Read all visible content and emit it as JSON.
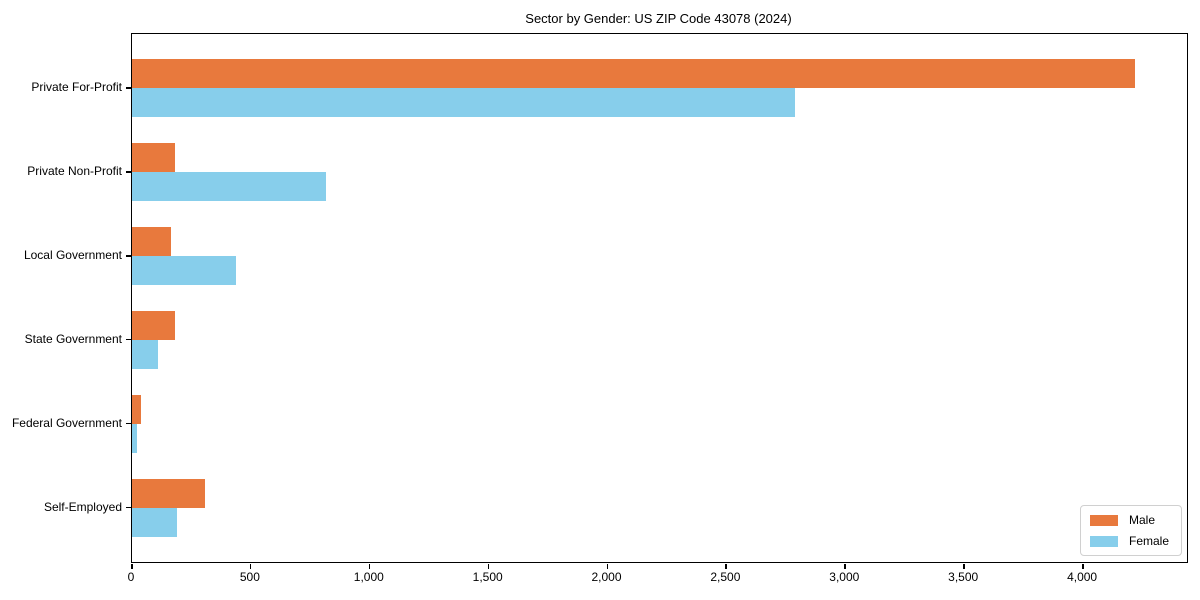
{
  "chart_data": {
    "type": "bar",
    "orientation": "horizontal",
    "title": "Sector by Gender: US ZIP Code 43078 (2024)",
    "categories": [
      "Private For-Profit",
      "Private Non-Profit",
      "Local Government",
      "State Government",
      "Federal Government",
      "Self-Employed"
    ],
    "series": [
      {
        "name": "Male",
        "color": "#e8793d",
        "values": [
          4220,
          182,
          165,
          182,
          37,
          307
        ]
      },
      {
        "name": "Female",
        "color": "#87ceeb",
        "values": [
          2790,
          815,
          437,
          110,
          21,
          190
        ]
      }
    ],
    "xlabel": "",
    "ylabel": "",
    "xlim": [
      0,
      4437
    ],
    "x_ticks": [
      0,
      500,
      1000,
      1500,
      2000,
      2500,
      3000,
      3500,
      4000
    ],
    "x_tick_labels": [
      "0",
      "500",
      "1,000",
      "1,500",
      "2,000",
      "2,500",
      "3,000",
      "3,500",
      "4,000"
    ],
    "grid": false,
    "legend_position": "lower right"
  },
  "colors": {
    "male": "#e8793d",
    "female": "#87ceeb",
    "spine": "#000000",
    "background": "#ffffff",
    "legend_border": "#d0d0d0"
  }
}
